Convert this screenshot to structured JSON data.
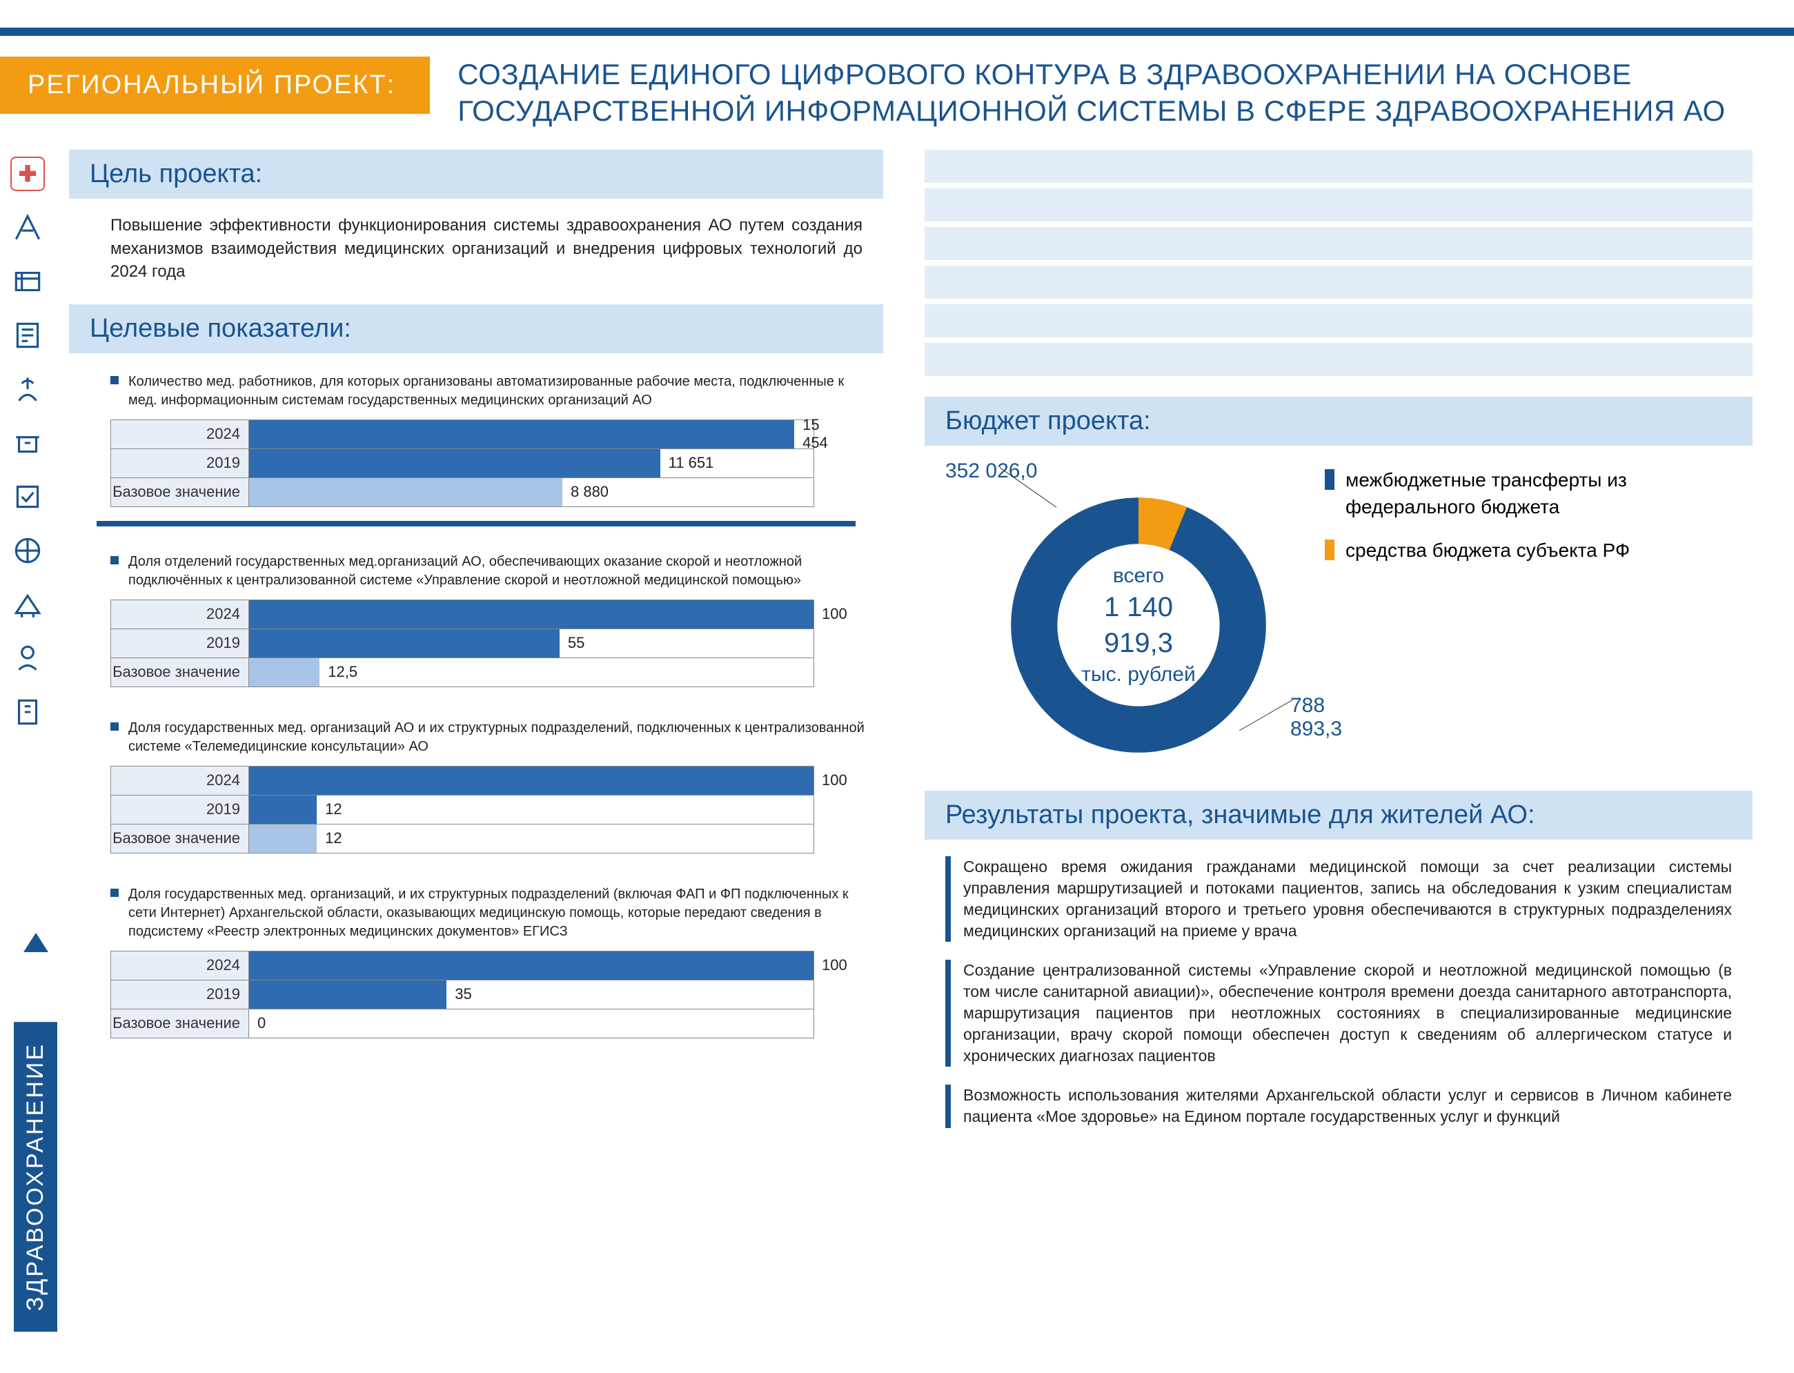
{
  "colors": {
    "primary": "#1a5490",
    "accent": "#f39c12",
    "stripe": "#cfe2f3",
    "bar": "#2e6bb0",
    "barLight": "#a8c5e8"
  },
  "badge": "РЕГИОНАЛЬНЫЙ ПРОЕКТ:",
  "title": "СОЗДАНИЕ ЕДИНОГО ЦИФРОВОГО КОНТУРА В ЗДРАВООХРАНЕНИИ НА ОСНОВЕ ГОСУДАРСТВЕННОЙ ИНФОРМАЦИОННОЙ СИСТЕМЫ В СФЕРЕ ЗДРАВООХРАНЕНИЯ АО",
  "vertLabel": "ЗДРАВООХРАНЕНИЕ",
  "sections": {
    "goal": "Цель проекта:",
    "indicators": "Целевые показатели:",
    "budget": "Бюджет проекта:",
    "results": "Результаты проекта, значимые для  жителей АО:"
  },
  "goalText": "Повышение эффективности функционирования системы здравоохранения АО путем создания механизмов взаимодействия медицинских организаций и внедрения цифровых технологий до 2024 года",
  "charts": [
    {
      "title": "Количество мед. работников, для которых организованы автоматизированные рабочие места, подключенные к мед. информационным системам государственных медицинских организаций АО",
      "max": 16000,
      "rows": [
        {
          "label": "2024",
          "value": 15454,
          "display": "15 454"
        },
        {
          "label": "2019",
          "value": 11651,
          "display": "11 651"
        },
        {
          "label": "Базовое значение",
          "value": 8880,
          "display": "8 880",
          "light": true
        }
      ]
    },
    {
      "title": "Доля отделений государственных мед.организаций АО, обеспечивающих оказание скорой и неотложной подключённых к централизованной системе «Управление скорой и неотложной медицинской помощью»",
      "max": 100,
      "rows": [
        {
          "label": "2024",
          "value": 100,
          "display": "100"
        },
        {
          "label": "2019",
          "value": 55,
          "display": "55"
        },
        {
          "label": "Базовое значение",
          "value": 12.5,
          "display": "12,5",
          "light": true
        }
      ]
    },
    {
      "title": "Доля государственных мед. организаций АО и их структурных подразделений, подключенных к централизованной системе «Телемедицинские консультации» АО",
      "max": 100,
      "rows": [
        {
          "label": "2024",
          "value": 100,
          "display": "100"
        },
        {
          "label": "2019",
          "value": 12,
          "display": "12"
        },
        {
          "label": "Базовое значение",
          "value": 12,
          "display": "12",
          "light": true
        }
      ]
    },
    {
      "title": "Доля государственных мед. организаций, и их структурных подразделений (включая ФАП и ФП подключенных к сети Интернет) Архангельской области, оказывающих медицинскую помощь, которые передают сведения в подсистему «Реестр электронных медицинских документов» ЕГИСЗ",
      "max": 100,
      "rows": [
        {
          "label": "2024",
          "value": 100,
          "display": "100"
        },
        {
          "label": "2019",
          "value": 35,
          "display": "35"
        },
        {
          "label": "Базовое значение",
          "value": 0,
          "display": "0",
          "light": true
        }
      ]
    }
  ],
  "budget": {
    "total": "1 140 919,3",
    "totalUnit": "тыс. рублей",
    "totalLabel": "всего",
    "slices": [
      {
        "label": "352 026,0",
        "value": 352026.0,
        "color": "#f39c12"
      },
      {
        "label": "788 893,3",
        "value": 788893.3,
        "color": "#1a5490"
      }
    ],
    "legend": [
      {
        "color": "#1a5490",
        "text": "межбюджетные трансферты из федерального бюджета"
      },
      {
        "color": "#f39c12",
        "text": "средства бюджета субъекта РФ"
      }
    ]
  },
  "results": [
    "Сокращено время ожидания гражданами медицинской помощи за счет реализации системы управления маршрутизацией и потоками пациентов, запись на обследования к узким специалистам медицинских организаций второго и третьего уровня обеспечиваются в структурных подразделениях медицинских организаций на приеме у врача",
    "Создание централизованной системы «Управление скорой и неотложной медицинской помощью (в том числе санитарной авиации)», обеспечение контроля времени доезда санитарного автотранспорта, маршрутизация пациентов при неотложных состояниях в специализированные медицинские организации, врачу скорой помощи обеспечен доступ к сведениям об аллергическом статусе и хронических диагнозах пациентов",
    "Возможность использования жителями Архангельской области услуг и сервисов в Личном кабинете пациента «Мое здоровье» на Едином портале государственных услуг и функций"
  ]
}
